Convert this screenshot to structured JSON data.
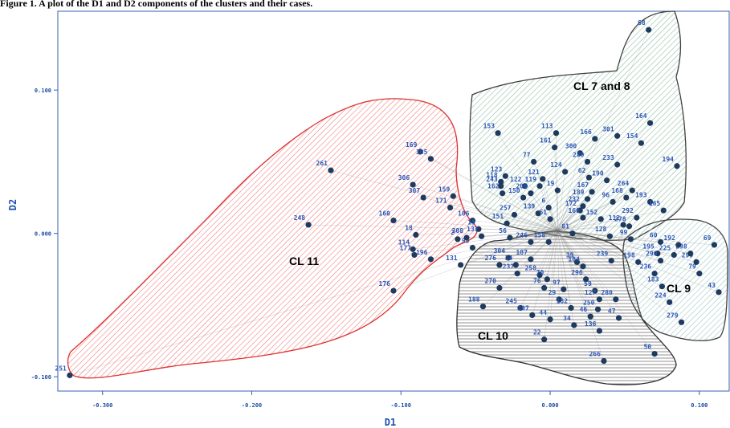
{
  "caption": "Figure 1. A plot of the D1 and D2 components of the clusters and their cases.",
  "chart_data": {
    "type": "scatter",
    "xlabel": "D1",
    "ylabel": "D2",
    "xlim": [
      -0.33,
      0.12
    ],
    "ylim": [
      -0.11,
      0.155
    ],
    "xticks": [
      -0.3,
      -0.2,
      -0.1,
      0.0,
      0.1
    ],
    "xtick_labels": [
      "-0.300",
      "-0.200",
      "-0.100",
      "0.000",
      "0.100"
    ],
    "yticks": [
      0.1,
      0.0,
      -0.1
    ],
    "ytick_labels": [
      "0.100",
      "0.000",
      "-0.100"
    ],
    "grid": false,
    "marker_color": "#1e3a5f",
    "clusters": [
      {
        "label": "CL 11",
        "fill": "#f08080",
        "stroke": "#e03030",
        "hatch": "diag"
      },
      {
        "label": "CL 7 and 8",
        "fill": "#8fbfa5",
        "stroke": "#404040",
        "hatch": "diag"
      },
      {
        "label": "CL 10",
        "fill": "#909090",
        "stroke": "#303030",
        "hatch": "horiz"
      },
      {
        "label": "CL 9",
        "fill": "#9cc9c6",
        "stroke": "#404040",
        "hatch": "diag"
      }
    ],
    "points": [
      {
        "id": "251",
        "x": -0.322,
        "y": -0.099
      },
      {
        "id": "261",
        "x": -0.147,
        "y": 0.044
      },
      {
        "id": "248",
        "x": -0.162,
        "y": 0.006
      },
      {
        "id": "169",
        "x": -0.087,
        "y": 0.057
      },
      {
        "id": "305",
        "x": -0.08,
        "y": 0.052
      },
      {
        "id": "306",
        "x": -0.092,
        "y": 0.034
      },
      {
        "id": "307",
        "x": -0.085,
        "y": 0.025
      },
      {
        "id": "160",
        "x": -0.105,
        "y": 0.009
      },
      {
        "id": "18",
        "x": -0.09,
        "y": -0.001
      },
      {
        "id": "114",
        "x": -0.092,
        "y": -0.011
      },
      {
        "id": "177",
        "x": -0.091,
        "y": -0.015
      },
      {
        "id": "196",
        "x": -0.08,
        "y": -0.018
      },
      {
        "id": "176",
        "x": -0.105,
        "y": -0.04
      },
      {
        "id": "131",
        "x": -0.06,
        "y": -0.022
      },
      {
        "id": "159",
        "x": -0.065,
        "y": 0.026
      },
      {
        "id": "171",
        "x": -0.067,
        "y": 0.018
      },
      {
        "id": "106",
        "x": -0.052,
        "y": 0.009
      },
      {
        "id": "15",
        "x": -0.048,
        "y": 0.003
      },
      {
        "id": "2",
        "x": -0.062,
        "y": -0.004
      },
      {
        "id": "95",
        "x": -0.052,
        "y": -0.01
      },
      {
        "id": "308",
        "x": -0.056,
        "y": -0.003
      },
      {
        "id": "137",
        "x": -0.046,
        "y": -0.002
      },
      {
        "id": "276",
        "x": -0.034,
        "y": -0.022
      },
      {
        "id": "153",
        "x": -0.035,
        "y": 0.07
      },
      {
        "id": "113",
        "x": 0.004,
        "y": 0.07
      },
      {
        "id": "77",
        "x": -0.011,
        "y": 0.05
      },
      {
        "id": "161",
        "x": 0.003,
        "y": 0.06
      },
      {
        "id": "123",
        "x": -0.03,
        "y": 0.04
      },
      {
        "id": "118",
        "x": -0.033,
        "y": 0.036
      },
      {
        "id": "243",
        "x": -0.033,
        "y": 0.033
      },
      {
        "id": "162",
        "x": -0.032,
        "y": 0.028
      },
      {
        "id": "122",
        "x": -0.017,
        "y": 0.033
      },
      {
        "id": "206",
        "x": -0.013,
        "y": 0.028
      },
      {
        "id": "150",
        "x": -0.018,
        "y": 0.025
      },
      {
        "id": "121",
        "x": -0.005,
        "y": 0.038
      },
      {
        "id": "124",
        "x": 0.01,
        "y": 0.043
      },
      {
        "id": "119",
        "x": -0.007,
        "y": 0.033
      },
      {
        "id": "19",
        "x": 0.005,
        "y": 0.03
      },
      {
        "id": "166",
        "x": 0.03,
        "y": 0.066
      },
      {
        "id": "300",
        "x": 0.02,
        "y": 0.056
      },
      {
        "id": "301",
        "x": 0.045,
        "y": 0.068
      },
      {
        "id": "164",
        "x": 0.067,
        "y": 0.077
      },
      {
        "id": "154",
        "x": 0.061,
        "y": 0.063
      },
      {
        "id": "68",
        "x": 0.066,
        "y": 0.142
      },
      {
        "id": "289",
        "x": 0.025,
        "y": 0.05
      },
      {
        "id": "233",
        "x": 0.045,
        "y": 0.048
      },
      {
        "id": "62",
        "x": 0.026,
        "y": 0.039
      },
      {
        "id": "190",
        "x": 0.038,
        "y": 0.037
      },
      {
        "id": "264",
        "x": 0.055,
        "y": 0.03
      },
      {
        "id": "168",
        "x": 0.051,
        "y": 0.025
      },
      {
        "id": "193",
        "x": 0.067,
        "y": 0.022
      },
      {
        "id": "165",
        "x": 0.076,
        "y": 0.016
      },
      {
        "id": "292",
        "x": 0.058,
        "y": 0.011
      },
      {
        "id": "194",
        "x": 0.085,
        "y": 0.047
      },
      {
        "id": "167",
        "x": 0.028,
        "y": 0.029
      },
      {
        "id": "189",
        "x": 0.025,
        "y": 0.024
      },
      {
        "id": "96",
        "x": 0.042,
        "y": 0.022
      },
      {
        "id": "232",
        "x": 0.022,
        "y": 0.019
      },
      {
        "id": "172",
        "x": 0.02,
        "y": 0.016
      },
      {
        "id": "160b",
        "x": 0.022,
        "y": 0.011
      },
      {
        "id": "152",
        "x": 0.034,
        "y": 0.01
      },
      {
        "id": "112",
        "x": 0.049,
        "y": 0.006
      },
      {
        "id": "278",
        "x": 0.053,
        "y": 0.005
      },
      {
        "id": "128",
        "x": 0.04,
        "y": -0.002
      },
      {
        "id": "99",
        "x": 0.054,
        "y": -0.004
      },
      {
        "id": "198",
        "x": 0.059,
        "y": -0.02
      },
      {
        "id": "239",
        "x": 0.041,
        "y": -0.019
      },
      {
        "id": "139",
        "x": -0.008,
        "y": 0.014
      },
      {
        "id": "6",
        "x": -0.001,
        "y": 0.018
      },
      {
        "id": "61",
        "x": 0.0,
        "y": 0.01
      },
      {
        "id": "257",
        "x": -0.024,
        "y": 0.013
      },
      {
        "id": "151",
        "x": -0.029,
        "y": 0.007
      },
      {
        "id": "56",
        "x": -0.027,
        "y": -0.003
      },
      {
        "id": "246",
        "x": -0.013,
        "y": -0.006
      },
      {
        "id": "158",
        "x": -0.001,
        "y": -0.006
      },
      {
        "id": "81",
        "x": 0.015,
        "y": 0.0
      },
      {
        "id": "39",
        "x": 0.018,
        "y": -0.02
      },
      {
        "id": "187",
        "x": -0.013,
        "y": -0.018
      },
      {
        "id": "304",
        "x": -0.028,
        "y": -0.017
      },
      {
        "id": "270",
        "x": -0.034,
        "y": -0.038
      },
      {
        "id": "237",
        "x": -0.022,
        "y": -0.028
      },
      {
        "id": "258",
        "x": -0.007,
        "y": -0.029
      },
      {
        "id": "14",
        "x": -0.023,
        "y": -0.022
      },
      {
        "id": "76",
        "x": -0.004,
        "y": -0.038
      },
      {
        "id": "70",
        "x": -0.002,
        "y": -0.032
      },
      {
        "id": "97",
        "x": 0.009,
        "y": -0.039
      },
      {
        "id": "29",
        "x": 0.006,
        "y": -0.046
      },
      {
        "id": "245",
        "x": -0.02,
        "y": -0.052
      },
      {
        "id": "197",
        "x": -0.012,
        "y": -0.057
      },
      {
        "id": "44",
        "x": 0.0,
        "y": -0.06
      },
      {
        "id": "182",
        "x": 0.014,
        "y": -0.052
      },
      {
        "id": "59",
        "x": 0.03,
        "y": -0.04
      },
      {
        "id": "127",
        "x": 0.033,
        "y": -0.046
      },
      {
        "id": "280",
        "x": 0.044,
        "y": -0.046
      },
      {
        "id": "250",
        "x": 0.032,
        "y": -0.053
      },
      {
        "id": "46",
        "x": 0.027,
        "y": -0.058
      },
      {
        "id": "47",
        "x": 0.046,
        "y": -0.059
      },
      {
        "id": "34",
        "x": 0.016,
        "y": -0.064
      },
      {
        "id": "136",
        "x": 0.033,
        "y": -0.068
      },
      {
        "id": "188",
        "x": -0.045,
        "y": -0.051
      },
      {
        "id": "22",
        "x": -0.004,
        "y": -0.074
      },
      {
        "id": "266",
        "x": 0.036,
        "y": -0.089
      },
      {
        "id": "50",
        "x": 0.07,
        "y": -0.084
      },
      {
        "id": "184",
        "x": 0.022,
        "y": -0.023
      },
      {
        "id": "296",
        "x": 0.024,
        "y": -0.032
      },
      {
        "id": "236",
        "x": 0.07,
        "y": -0.028
      },
      {
        "id": "183",
        "x": 0.075,
        "y": -0.037
      },
      {
        "id": "224",
        "x": 0.08,
        "y": -0.048
      },
      {
        "id": "279",
        "x": 0.088,
        "y": -0.062
      },
      {
        "id": "43",
        "x": 0.113,
        "y": -0.041
      },
      {
        "id": "79",
        "x": 0.1,
        "y": -0.028
      },
      {
        "id": "299",
        "x": 0.098,
        "y": -0.02
      },
      {
        "id": "298",
        "x": 0.094,
        "y": -0.014
      },
      {
        "id": "225",
        "x": 0.083,
        "y": -0.015
      },
      {
        "id": "192",
        "x": 0.086,
        "y": -0.008
      },
      {
        "id": "69",
        "x": 0.11,
        "y": -0.008
      },
      {
        "id": "60",
        "x": 0.074,
        "y": -0.006
      },
      {
        "id": "195",
        "x": 0.072,
        "y": -0.014
      },
      {
        "id": "290",
        "x": 0.074,
        "y": -0.019
      }
    ]
  }
}
